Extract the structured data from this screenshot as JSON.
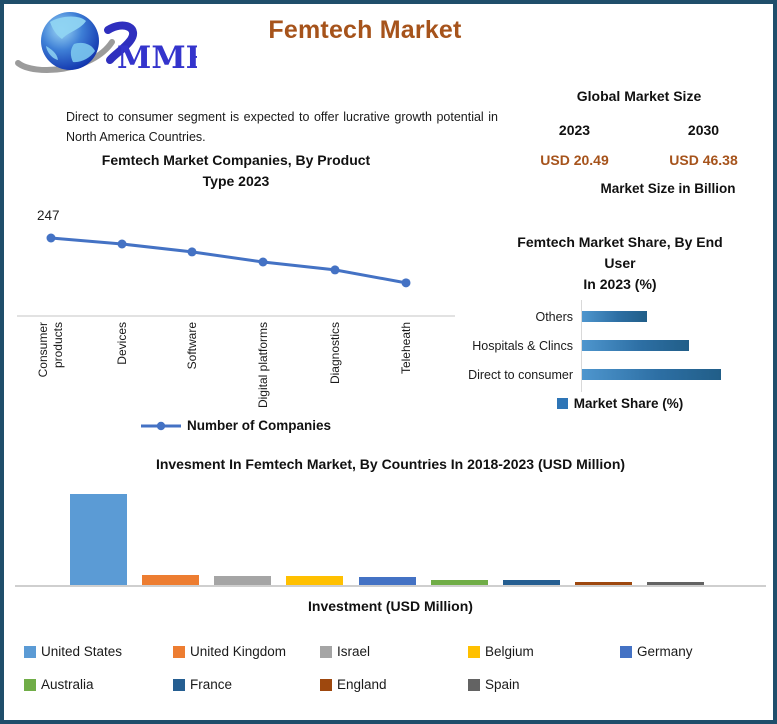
{
  "header": {
    "logo_text": "MMR",
    "title": "Femtech Market"
  },
  "intro": "Direct to consumer segment is expected to offer lucrative growth potential in North America Countries.",
  "market_size": {
    "title": "Global Market Size",
    "year_left": "2023",
    "year_right": "2030",
    "value_left": "USD 20.49",
    "value_right": "USD 46.38",
    "caption": "Market Size in Billion"
  },
  "companies_chart": {
    "display_title": "Femtech Market Companies, By Product\nType 2023",
    "first_point_label": "247",
    "legend": "Number of Companies"
  },
  "share_chart": {
    "display_title": "Femtech Market Share, By End\nUser\nIn 2023 (%)",
    "legend": "Market Share (%)"
  },
  "investment_chart": {
    "title": "Invesment In Femtech Market, By Countries In 2018-2023 (USD Million)",
    "xlabel": "Investment (USD Million)"
  },
  "colors": {
    "accent_brown": "#A6531B",
    "line_blue": "#4472C4",
    "share_bar_gradient_start": "#4E96CE",
    "share_bar_gradient_end": "#215E88",
    "share_legend_blue": "#2E75B6",
    "axis_gray": "#D9D9D9",
    "frame_navy": "#1F4E6B"
  },
  "chart_data": [
    {
      "id": "companies_by_product",
      "type": "line",
      "title": "Femtech Market Companies, By Product Type 2023",
      "categories": [
        "Consumer products",
        "Devices",
        "Software",
        "Digital platforms",
        "Diagnostics",
        "Teleheath"
      ],
      "series": [
        {
          "name": "Number of Companies",
          "values": [
            247,
            228,
            203,
            171,
            146,
            105
          ]
        }
      ],
      "data_labels": [
        "247",
        "",
        "",
        "",
        "",
        ""
      ],
      "legend_position": "bottom",
      "grid": false
    },
    {
      "id": "market_share_by_end_user",
      "type": "bar",
      "orientation": "horizontal",
      "title": "Femtech Market Share, By End User In 2023 (%)",
      "categories": [
        "Others",
        "Hospitals & Clincs",
        "Direct to consumer"
      ],
      "values": [
        22,
        36,
        47
      ],
      "xlabel": "",
      "ylabel": "",
      "legend": [
        "Market Share (%)"
      ],
      "legend_position": "bottom",
      "grid": false
    },
    {
      "id": "investment_by_country",
      "type": "bar",
      "title": "Invesment In Femtech Market, By Countries In 2018-2023 (USD Million)",
      "categories": [
        "United States",
        "United Kingdom",
        "Israel",
        "Belgium",
        "Germany",
        "Australia",
        "France",
        "England",
        "Spain"
      ],
      "values": [
        2000,
        220,
        200,
        195,
        170,
        120,
        100,
        65,
        55
      ],
      "bar_colors": [
        "#5B9BD5",
        "#ED7D31",
        "#A5A5A5",
        "#FFC000",
        "#4472C4",
        "#70AD47",
        "#255E91",
        "#9E480E",
        "#636363"
      ],
      "xlabel": "Investment (USD Million)",
      "legend_position": "bottom",
      "grid": false
    }
  ]
}
